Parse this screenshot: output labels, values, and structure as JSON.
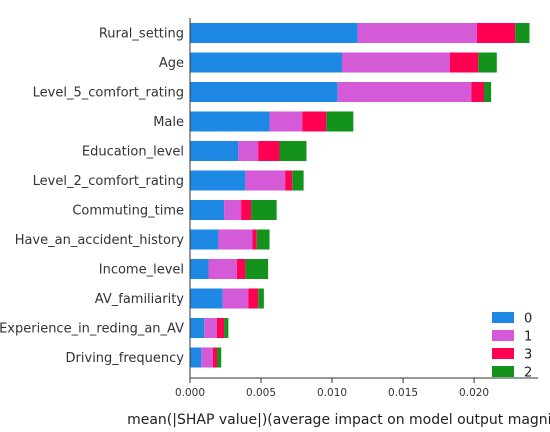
{
  "chart_data": {
    "type": "bar",
    "orientation": "horizontal",
    "stacked": true,
    "xlabel": "mean(|SHAP value|)(average impact on model output magnitude)",
    "xlim": [
      0,
      0.0245
    ],
    "xticks": [
      "0.000",
      "0.005",
      "0.010",
      "0.015",
      "0.020"
    ],
    "grid": false,
    "legend_position": "bottom-right",
    "categories": [
      "Rural_setting",
      "Age",
      "Level_5_comfort_rating",
      "Male",
      "Education_level",
      "Level_2_comfort_rating",
      "Commuting_time",
      "Have_an_accident_history",
      "Income_level",
      "AV_familiarity",
      "Experience_in_reding_an_AV",
      "Driving_frequency"
    ],
    "series": [
      {
        "name": "0",
        "color": "#1e88e5",
        "values": [
          0.0118,
          0.0107,
          0.0104,
          0.0056,
          0.0034,
          0.0039,
          0.0024,
          0.002,
          0.0013,
          0.0023,
          0.001,
          0.0008
        ]
      },
      {
        "name": "1",
        "color": "#d55ad8",
        "values": [
          0.0084,
          0.0076,
          0.0094,
          0.0023,
          0.0014,
          0.0028,
          0.0012,
          0.0024,
          0.002,
          0.0018,
          0.0009,
          0.0008
        ]
      },
      {
        "name": "3",
        "color": "#ff0052",
        "values": [
          0.0027,
          0.002,
          0.0009,
          0.0017,
          0.0015,
          0.0005,
          0.0007,
          0.0003,
          0.0006,
          0.0007,
          0.0005,
          0.0003
        ]
      },
      {
        "name": "2",
        "color": "#13921c",
        "values": [
          0.001,
          0.0013,
          0.0005,
          0.0019,
          0.0019,
          0.0008,
          0.0018,
          0.0009,
          0.0016,
          0.0004,
          0.0003,
          0.0003
        ]
      }
    ]
  }
}
